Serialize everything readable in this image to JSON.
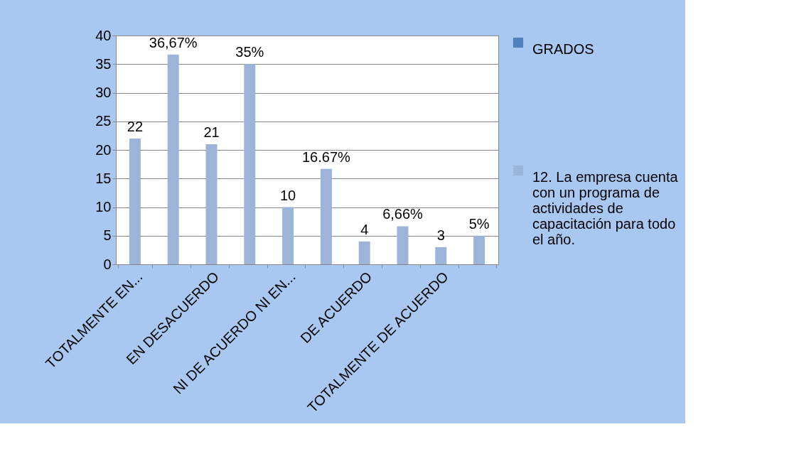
{
  "chart_data": {
    "type": "bar",
    "categories": [
      "TOTALMENTE EN...",
      null,
      "EN DESACUERDO",
      null,
      "NI DE ACUERDO NI EN...",
      null,
      "DE ACUERDO",
      null,
      "TOTALMENTE DE ACUERDO",
      null
    ],
    "series": [
      {
        "name": "GRADOS",
        "color": "#4f81bd",
        "values": [
          null,
          null,
          null,
          null,
          null,
          null,
          null,
          null,
          null,
          null
        ]
      },
      {
        "name": "12. La empresa cuenta con un programa de actividades de capacitación para todo el año.",
        "color": "#9cb4d8",
        "values": [
          22,
          36.67,
          21,
          35,
          10,
          16.67,
          4,
          6.66,
          3,
          5
        ],
        "value_labels": [
          "22",
          "36,67%",
          "21",
          "35%",
          "10",
          "16.67%",
          "4",
          "6,66%",
          "3",
          "5%"
        ]
      }
    ],
    "ylim": [
      0,
      40
    ],
    "yticks": [
      0,
      5,
      10,
      15,
      20,
      25,
      30,
      35,
      40
    ],
    "grid": "y",
    "legend": "right"
  }
}
